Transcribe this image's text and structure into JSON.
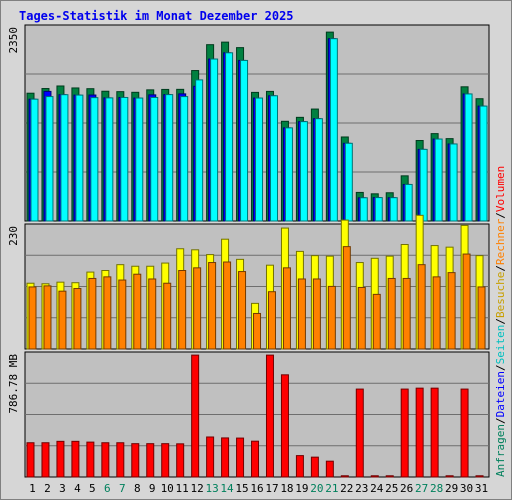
{
  "chart_data": {
    "type": "bar",
    "title": "Tages-Statistik im Monat Dezember 2025",
    "categories": [
      "1",
      "2",
      "3",
      "4",
      "5",
      "6",
      "7",
      "8",
      "9",
      "10",
      "11",
      "12",
      "13",
      "14",
      "15",
      "16",
      "17",
      "18",
      "19",
      "20",
      "21",
      "22",
      "23",
      "24",
      "25",
      "26",
      "27",
      "28",
      "29",
      "30",
      "31"
    ],
    "weekend_days": [
      "6",
      "7",
      "13",
      "14",
      "20",
      "21",
      "27",
      "28"
    ],
    "panels": [
      {
        "name": "requests",
        "ymax": 2350,
        "ymax_label": "2350",
        "series": [
          {
            "name": "Anfragen",
            "color": "#008040",
            "values": [
              1556,
              1613,
              1644,
              1620,
              1611,
              1580,
              1575,
              1567,
              1597,
              1602,
              1603,
              1832,
              2147,
              2178,
              2111,
              1566,
              1578,
              1214,
              1262,
              1363,
              2300,
              1023,
              348,
              331,
              344,
              550,
              980,
              1064,
              1003,
              1634,
              1489
            ]
          },
          {
            "name": "Dateien",
            "color": "#0000ff",
            "values": [
              1483,
              1578,
              1538,
              1533,
              1534,
              1499,
              1504,
              1497,
              1536,
              1539,
              1548,
              1640,
              1972,
              2048,
              1955,
              1497,
              1525,
              1134,
              1210,
              1246,
              2220,
              946,
              283,
              285,
              284,
              445,
              872,
              998,
              938,
              1547,
              1399
            ]
          },
          {
            "name": "Seiten",
            "color": "#00ffff",
            "values": [
              1483,
              1515,
              1538,
              1533,
              1502,
              1499,
              1504,
              1497,
              1504,
              1539,
              1515,
              1718,
              1972,
              2048,
              1955,
              1497,
              1525,
              1134,
              1210,
              1246,
              2220,
              946,
              283,
              285,
              284,
              445,
              872,
              998,
              938,
              1547,
              1399
            ]
          }
        ]
      },
      {
        "name": "visits",
        "ymax": 230,
        "ymax_label": "230",
        "series": [
          {
            "name": "Besuche",
            "color": "#ffff00",
            "values": [
              124,
              123,
              126,
              125,
              145,
              148,
              159,
              156,
              156,
              162,
              189,
              187,
              178,
              207,
              169,
              86,
              158,
              228,
              184,
              176,
              175,
              243,
              163,
              171,
              175,
              197,
              252,
              195,
              192,
              233,
              176
            ]
          },
          {
            "name": "Rechner",
            "color": "#ff8000",
            "values": [
              117,
              119,
              109,
              114,
              133,
              136,
              130,
              141,
              132,
              124,
              148,
              153,
              163,
              164,
              146,
              67,
              108,
              153,
              132,
              132,
              118,
              193,
              116,
              103,
              133,
              133,
              159,
              136,
              144,
              179,
              117
            ]
          }
        ]
      },
      {
        "name": "volume",
        "ymax": 786.78,
        "ymax_label": "786.78 MB",
        "series": [
          {
            "name": "Volumen",
            "color": "#ff0000",
            "values": [
              221,
              221,
              230,
              230,
              225,
              221,
              221,
              215,
              215,
              215,
              214,
              786,
              258,
              252,
              251,
              231,
              786,
              659,
              138,
              128,
              102,
              8,
              567,
              8,
              8,
              567,
              573,
              573,
              8,
              567,
              8
            ]
          }
        ]
      }
    ],
    "legend_right": [
      "Anfragen",
      "/",
      "Dateien",
      "/",
      "Seiten",
      "/",
      "Besuche",
      "/",
      "Rechner",
      "/",
      "Volumen"
    ]
  },
  "colors": {
    "background": "#d6d6d6",
    "plot_background": "#c0c0c0",
    "weekend_label": "#00805c",
    "weekday_label": "#000000",
    "title": "#0000ee"
  }
}
